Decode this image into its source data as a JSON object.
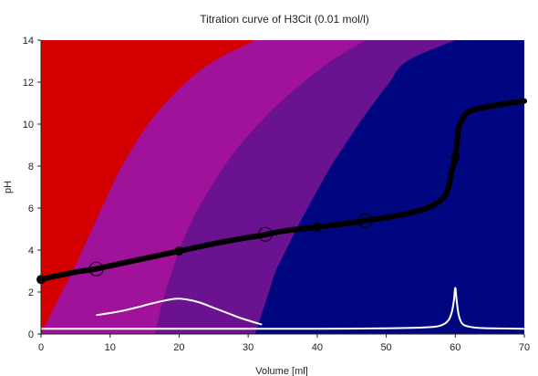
{
  "chart_data": {
    "type": "line",
    "title": "Titration curve of H3Cit (0.01 mol/l)",
    "xlabel": "Volume [ml]",
    "ylabel": "pH",
    "xlim": [
      0,
      70
    ],
    "ylim": [
      0,
      14
    ],
    "x_ticks": [
      "0",
      "10",
      "20",
      "30",
      "40",
      "50",
      "60",
      "70"
    ],
    "y_ticks": [
      "0",
      "2",
      "4",
      "6",
      "8",
      "10",
      "12",
      "14"
    ],
    "grid": false,
    "legend": "none",
    "colors": {
      "species_0": "#d40000",
      "species_1": "#a0129a",
      "species_2": "#6a1290",
      "species_3": "#00067f",
      "titration_curve": "#000000",
      "derivative_curves": "#ffffff"
    },
    "series": [
      {
        "x": [
          0,
          2,
          5,
          8,
          10,
          15,
          20,
          25,
          30,
          32,
          35,
          40,
          45,
          47,
          50,
          55,
          58,
          59,
          59.5,
          60,
          60.5,
          61,
          62,
          65,
          70
        ],
        "y": [
          2.6,
          2.75,
          2.95,
          3.1,
          3.25,
          3.6,
          3.95,
          4.3,
          4.6,
          4.7,
          4.9,
          5.1,
          5.3,
          5.4,
          5.55,
          5.9,
          6.4,
          7.0,
          7.8,
          8.4,
          9.8,
          10.2,
          10.6,
          10.85,
          11.1
        ]
      },
      {
        "x": [
          8,
          10,
          12,
          14,
          16,
          18,
          19.5,
          21,
          23,
          25,
          27,
          29,
          32
        ],
        "y": [
          0.9,
          1.0,
          1.12,
          1.28,
          1.45,
          1.6,
          1.68,
          1.65,
          1.5,
          1.25,
          1.0,
          0.75,
          0.45
        ]
      },
      {
        "x": [
          0,
          10,
          20,
          30,
          40,
          50,
          56,
          58,
          59,
          59.5,
          59.8,
          60,
          60.2,
          60.5,
          61,
          62,
          64,
          70
        ],
        "y": [
          0.25,
          0.25,
          0.25,
          0.25,
          0.25,
          0.27,
          0.32,
          0.42,
          0.65,
          1.05,
          1.6,
          2.2,
          1.6,
          0.9,
          0.5,
          0.35,
          0.28,
          0.25
        ]
      }
    ],
    "points_filled": [
      {
        "x": 0,
        "y": 2.6
      },
      {
        "x": 20,
        "y": 3.95
      },
      {
        "x": 40,
        "y": 5.1
      },
      {
        "x": 60,
        "y": 8.4
      }
    ],
    "points_open": [
      {
        "x": 8,
        "y": 3.1
      },
      {
        "x": 32.5,
        "y": 4.75
      },
      {
        "x": 47,
        "y": 5.4
      }
    ],
    "species_boundaries": {
      "y": [
        0,
        1,
        2,
        3,
        4,
        5,
        6,
        7,
        8,
        9,
        10,
        11,
        12,
        13,
        14
      ],
      "b1": [
        0,
        1.5,
        3.0,
        4.6,
        6.0,
        7.4,
        8.8,
        10.2,
        11.7,
        13.5,
        15.5,
        18.0,
        21.0,
        25.0,
        31.0
      ],
      "b2": [
        16.5,
        17.2,
        18.0,
        19.0,
        20.0,
        21.3,
        22.8,
        24.6,
        26.5,
        28.8,
        31.5,
        34.5,
        38.0,
        42.0,
        47.0
      ],
      "b3": [
        31.0,
        32.0,
        33.0,
        34.0,
        35.5,
        37.0,
        38.6,
        40.3,
        42.0,
        44.0,
        46.0,
        48.2,
        50.5,
        53.0,
        60.0
      ]
    }
  }
}
